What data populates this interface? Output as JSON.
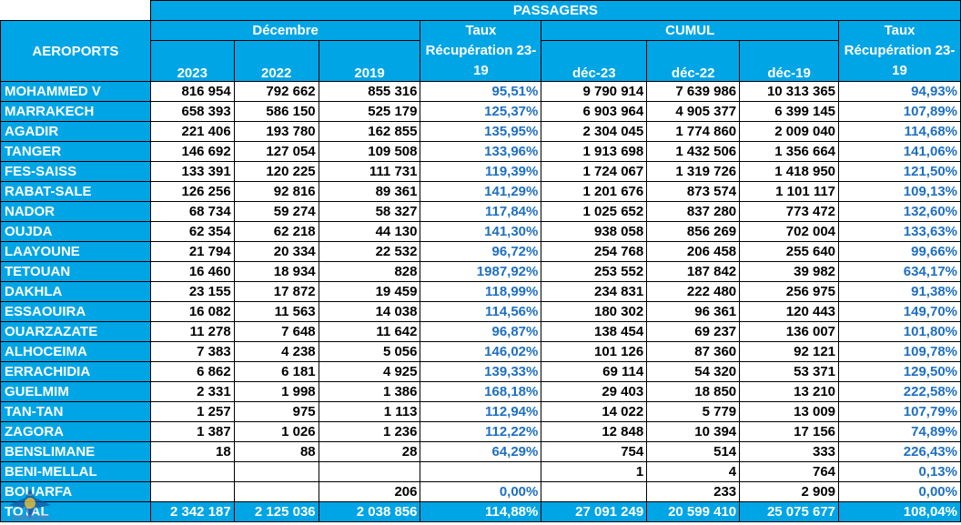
{
  "header": {
    "title": "PASSAGERS",
    "airports_label": "AEROPORTS",
    "month_group": "Décembre",
    "cumul_group": "CUMUL",
    "rate_label": "Taux Récupération 23-19",
    "month_years": [
      "2023",
      "2022",
      "2019"
    ],
    "cumul_years": [
      "déc-23",
      "déc-22",
      "déc-19"
    ]
  },
  "rows": [
    {
      "airport": "MOHAMMED V",
      "m2023": "816 954",
      "m2022": "792 662",
      "m2019": "855 316",
      "m_rate": "95,51%",
      "c23": "9 790 914",
      "c22": "7 639 986",
      "c19": "10 313 365",
      "c_rate": "94,93%"
    },
    {
      "airport": "MARRAKECH",
      "m2023": "658 393",
      "m2022": "586 150",
      "m2019": "525 179",
      "m_rate": "125,37%",
      "c23": "6 903 964",
      "c22": "4 905 377",
      "c19": "6 399 145",
      "c_rate": "107,89%"
    },
    {
      "airport": "AGADIR",
      "m2023": "221 406",
      "m2022": "193 780",
      "m2019": "162 855",
      "m_rate": "135,95%",
      "c23": "2 304 045",
      "c22": "1 774 860",
      "c19": "2 009 040",
      "c_rate": "114,68%"
    },
    {
      "airport": "TANGER",
      "m2023": "146 692",
      "m2022": "127 054",
      "m2019": "109 508",
      "m_rate": "133,96%",
      "c23": "1 913 698",
      "c22": "1 432 506",
      "c19": "1 356 664",
      "c_rate": "141,06%"
    },
    {
      "airport": "FES-SAISS",
      "m2023": "133 391",
      "m2022": "120 225",
      "m2019": "111 731",
      "m_rate": "119,39%",
      "c23": "1 724 067",
      "c22": "1 319 726",
      "c19": "1 418 950",
      "c_rate": "121,50%"
    },
    {
      "airport": "RABAT-SALE",
      "m2023": "126 256",
      "m2022": "92 816",
      "m2019": "89 361",
      "m_rate": "141,29%",
      "c23": "1 201 676",
      "c22": "873 574",
      "c19": "1 101 117",
      "c_rate": "109,13%"
    },
    {
      "airport": "NADOR",
      "m2023": "68 734",
      "m2022": "59 274",
      "m2019": "58 327",
      "m_rate": "117,84%",
      "c23": "1 025 652",
      "c22": "837 280",
      "c19": "773 472",
      "c_rate": "132,60%"
    },
    {
      "airport": "OUJDA",
      "m2023": "62 354",
      "m2022": "62 218",
      "m2019": "44 130",
      "m_rate": "141,30%",
      "c23": "938 058",
      "c22": "856 269",
      "c19": "702 004",
      "c_rate": "133,63%"
    },
    {
      "airport": "LAAYOUNE",
      "m2023": "21 794",
      "m2022": "20 334",
      "m2019": "22 532",
      "m_rate": "96,72%",
      "c23": "254 768",
      "c22": "206 458",
      "c19": "255 640",
      "c_rate": "99,66%"
    },
    {
      "airport": "TETOUAN",
      "m2023": "16 460",
      "m2022": "18 934",
      "m2019": "828",
      "m_rate": "1987,92%",
      "c23": "253 552",
      "c22": "187 842",
      "c19": "39 982",
      "c_rate": "634,17%"
    },
    {
      "airport": "DAKHLA",
      "m2023": "23 155",
      "m2022": "17 872",
      "m2019": "19 459",
      "m_rate": "118,99%",
      "c23": "234 831",
      "c22": "222 480",
      "c19": "256 975",
      "c_rate": "91,38%"
    },
    {
      "airport": "ESSAOUIRA",
      "m2023": "16 082",
      "m2022": "11 563",
      "m2019": "14 038",
      "m_rate": "114,56%",
      "c23": "180 302",
      "c22": "96 361",
      "c19": "120 443",
      "c_rate": "149,70%"
    },
    {
      "airport": "OUARZAZATE",
      "m2023": "11 278",
      "m2022": "7 648",
      "m2019": "11 642",
      "m_rate": "96,87%",
      "c23": "138 454",
      "c22": "69 237",
      "c19": "136 007",
      "c_rate": "101,80%"
    },
    {
      "airport": "ALHOCEIMA",
      "m2023": "7 383",
      "m2022": "4 238",
      "m2019": "5 056",
      "m_rate": "146,02%",
      "c23": "101 126",
      "c22": "87 360",
      "c19": "92 121",
      "c_rate": "109,78%"
    },
    {
      "airport": "ERRACHIDIA",
      "m2023": "6 862",
      "m2022": "6 181",
      "m2019": "4 925",
      "m_rate": "139,33%",
      "c23": "69 114",
      "c22": "54 320",
      "c19": "53 371",
      "c_rate": "129,50%"
    },
    {
      "airport": "GUELMIM",
      "m2023": "2 331",
      "m2022": "1 998",
      "m2019": "1 386",
      "m_rate": "168,18%",
      "c23": "29 403",
      "c22": "18 850",
      "c19": "13 210",
      "c_rate": "222,58%"
    },
    {
      "airport": "TAN-TAN",
      "m2023": "1 257",
      "m2022": "975",
      "m2019": "1 113",
      "m_rate": "112,94%",
      "c23": "14 022",
      "c22": "5 779",
      "c19": "13 009",
      "c_rate": "107,79%"
    },
    {
      "airport": "ZAGORA",
      "m2023": "1 387",
      "m2022": "1 026",
      "m2019": "1 236",
      "m_rate": "112,22%",
      "c23": "12 848",
      "c22": "10 394",
      "c19": "17 156",
      "c_rate": "74,89%"
    },
    {
      "airport": "BENSLIMANE",
      "m2023": "18",
      "m2022": "88",
      "m2019": "28",
      "m_rate": "64,29%",
      "c23": "754",
      "c22": "514",
      "c19": "333",
      "c_rate": "226,43%"
    },
    {
      "airport": "BENI-MELLAL",
      "m2023": "",
      "m2022": "",
      "m2019": "",
      "m_rate": "",
      "c23": "1",
      "c22": "4",
      "c19": "764",
      "c_rate": "0,13%"
    },
    {
      "airport": "BOUARFA",
      "m2023": "",
      "m2022": "",
      "m2019": "206",
      "m_rate": "0,00%",
      "c23": "",
      "c22": "233",
      "c19": "2 909",
      "c_rate": "0,00%"
    }
  ],
  "total": {
    "airport": "TOTAL",
    "m2023": "2 342 187",
    "m2022": "2 125 036",
    "m2019": "2 038 856",
    "m_rate": "114,88%",
    "c23": "27 091 249",
    "c22": "20 599 410",
    "c19": "25 075 677",
    "c_rate": "108,04%"
  },
  "colors": {
    "header_bg": "#00a5e5",
    "rate_text": "#1f6fc0"
  },
  "logo_icon": "airport-authority-logo-icon"
}
